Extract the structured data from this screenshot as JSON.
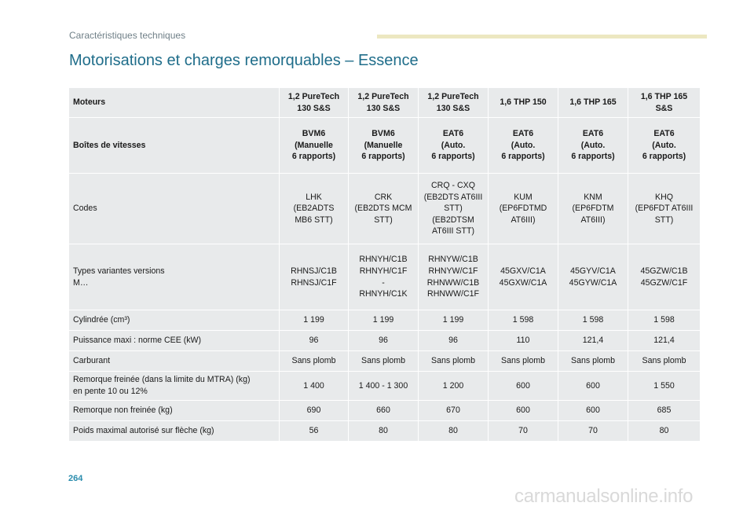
{
  "header": {
    "section": "Caractéristiques techniques",
    "title": "Motorisations et charges remorquables – Essence"
  },
  "table": {
    "rows": [
      {
        "label": "Moteurs",
        "bold": true,
        "cells": [
          "1,2 PureTech\n130 S&S",
          "1,2 PureTech\n130 S&S",
          "1,2 PureTech\n130 S&S",
          "1,6 THP 150",
          "1,6 THP 165",
          "1,6 THP 165\nS&S"
        ]
      },
      {
        "label": "Boîtes de vitesses",
        "bold": true,
        "cells": [
          "BVM6\n(Manuelle\n6 rapports)",
          "BVM6\n(Manuelle\n6 rapports)",
          "EAT6\n(Auto.\n6 rapports)",
          "EAT6\n(Auto.\n6 rapports)",
          "EAT6\n(Auto.\n6 rapports)",
          "EAT6\n(Auto.\n6 rapports)"
        ]
      },
      {
        "label": "Codes",
        "bold": false,
        "cells": [
          "LHK\n(EB2ADTS\nMB6 STT)",
          "CRK\n(EB2DTS MCM\nSTT)",
          "CRQ - CXQ\n(EB2DTS AT6III\nSTT)\n(EB2DTSM\nAT6III STT)",
          "KUM\n(EP6FDTMD\nAT6III)",
          "KNM\n(EP6FDTM\nAT6III)",
          "KHQ\n(EP6FDT AT6III\nSTT)"
        ]
      },
      {
        "label": "Types variantes versions\nM…",
        "bold": false,
        "cells": [
          "RHNSJ/C1B\nRHNSJ/C1F",
          "RHNYH/C1B\nRHNYH/C1F\n-\nRHNYH/C1K",
          "RHNYW/C1B\nRHNYW/C1F\nRHNWW/C1B\nRHNWW/C1F",
          "45GXV/C1A\n45GXW/C1A",
          "45GYV/C1A\n45GYW/C1A",
          "45GZW/C1B\n45GZW/C1F"
        ]
      },
      {
        "label": "Cylindrée (cm³)",
        "bold": false,
        "cells": [
          "1 199",
          "1 199",
          "1 199",
          "1 598",
          "1 598",
          "1 598"
        ]
      },
      {
        "label": "Puissance maxi : norme CEE (kW)",
        "bold": false,
        "cells": [
          "96",
          "96",
          "96",
          "110",
          "121,4",
          "121,4"
        ]
      },
      {
        "label": "Carburant",
        "bold": false,
        "cells": [
          "Sans plomb",
          "Sans plomb",
          "Sans plomb",
          "Sans plomb",
          "Sans plomb",
          "Sans plomb"
        ]
      },
      {
        "label": "Remorque freinée (dans la limite du MTRA) (kg)\nen pente 10 ou 12%",
        "bold": false,
        "cells": [
          "1 400",
          "1 400 - 1 300",
          "1 200",
          "600",
          "600",
          "1 550"
        ]
      },
      {
        "label": "Remorque non freinée (kg)",
        "bold": false,
        "cells": [
          "690",
          "660",
          "670",
          "600",
          "600",
          "685"
        ]
      },
      {
        "label": "Poids maximal autorisé sur flèche (kg)",
        "bold": false,
        "cells": [
          "56",
          "80",
          "80",
          "70",
          "70",
          "80"
        ]
      }
    ]
  },
  "footer": {
    "page_number": "264",
    "watermark": "carmanualsonline.info"
  }
}
